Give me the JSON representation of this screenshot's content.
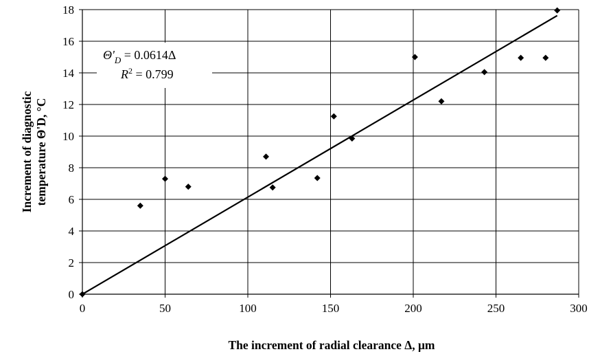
{
  "chart_data": {
    "type": "scatter",
    "title": "",
    "xlabel": "The increment of radial clearance Δ, μm",
    "ylabel_lines": [
      "Increment of diagnostic",
      "temperature Θ'D, °C"
    ],
    "xlim": [
      0,
      300
    ],
    "ylim": [
      0,
      18
    ],
    "xticks": [
      "0",
      "50",
      "100",
      "150",
      "200",
      "250",
      "300"
    ],
    "yticks": [
      "0",
      "2",
      "4",
      "6",
      "8",
      "10",
      "12",
      "14",
      "16",
      "18"
    ],
    "grid": "horizontal and vertical",
    "legend": "none",
    "marker_color": "#000000",
    "series": [
      {
        "points": [
          {
            "x": 0,
            "y": 0
          },
          {
            "x": 35,
            "y": 5.6
          },
          {
            "x": 50,
            "y": 7.3
          },
          {
            "x": 64,
            "y": 6.8
          },
          {
            "x": 111,
            "y": 8.7
          },
          {
            "x": 115,
            "y": 6.75
          },
          {
            "x": 142,
            "y": 7.35
          },
          {
            "x": 152,
            "y": 11.25
          },
          {
            "x": 163,
            "y": 9.85
          },
          {
            "x": 201,
            "y": 15.0
          },
          {
            "x": 217,
            "y": 12.2
          },
          {
            "x": 243,
            "y": 14.05
          },
          {
            "x": 265,
            "y": 14.95
          },
          {
            "x": 280,
            "y": 14.95
          },
          {
            "x": 287,
            "y": 17.95
          }
        ]
      }
    ],
    "trendline": {
      "slope": 0.0614,
      "x_start": 0,
      "x_end": 287,
      "equation_symbol": "Θ'",
      "equation_subscript": "D",
      "equation_rhs": " = 0.0614Δ",
      "r2_symbol": "R",
      "r2_power": "2",
      "r2_rhs": " = 0.799"
    }
  }
}
